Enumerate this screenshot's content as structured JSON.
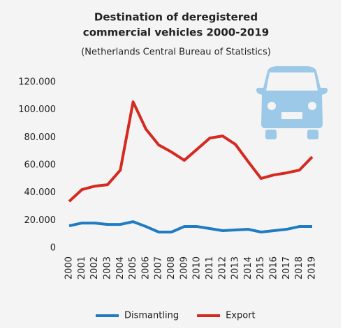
{
  "chart_data": {
    "type": "line",
    "title": [
      "Destination of deregistered",
      "commercial vehicles 2000-2019"
    ],
    "subtitle": "(Netherlands Central Bureau of Statistics)",
    "categories": [
      "2000",
      "2001",
      "2002",
      "2003",
      "2004",
      "2005",
      "2006",
      "2007",
      "2008",
      "2009",
      "2010",
      "2011",
      "2012",
      "2013",
      "2014",
      "2015",
      "2016",
      "2017",
      "2018",
      "2019"
    ],
    "series": [
      {
        "name": "Dismantling",
        "color": "#1f7cc2",
        "values": [
          16100,
          18100,
          18100,
          17100,
          17100,
          19100,
          15600,
          11600,
          11600,
          15600,
          15600,
          14100,
          12600,
          13100,
          13600,
          11600,
          12600,
          13600,
          15600,
          15600
        ]
      },
      {
        "name": "Export",
        "color": "#d42a20",
        "values": [
          33750,
          42300,
          44800,
          45800,
          56400,
          105800,
          86100,
          74600,
          69500,
          63500,
          71500,
          79600,
          81100,
          75000,
          62500,
          50400,
          52900,
          54400,
          56400,
          66000
        ]
      }
    ],
    "ylim": [
      0,
      120000
    ],
    "yticks": [
      0,
      {
        "value": 20000,
        "label": "20.000"
      },
      {
        "value": 40000,
        "label": "40.000"
      },
      {
        "value": 60000,
        "label": "60.000"
      },
      {
        "value": 80000,
        "label": "80.000"
      },
      {
        "value": 100000,
        "label": "100.000"
      },
      {
        "value": 120000,
        "label": "120.000"
      }
    ],
    "grid": false,
    "legend": "bottom"
  }
}
